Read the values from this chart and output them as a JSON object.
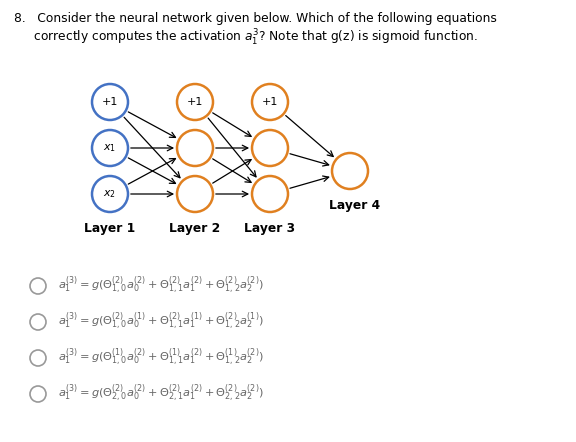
{
  "bg_color": "#ffffff",
  "circle_blue_edge": "#4472c4",
  "circle_orange_edge": "#e08020",
  "circle_lw": 1.8,
  "layer1_label": "Layer 1",
  "layer2_label": "Layer 2",
  "layer3_label": "Layer 3",
  "layer4_label": "Layer 4",
  "options": [
    "$a_1^{(3)} = g(\\Theta_{1,0}^{(2)}a_0^{(2)} + \\Theta_{1,1}^{(2)}a_1^{(2)} + \\Theta_{1,2}^{(2)}a_2^{(2)})$",
    "$a_1^{(3)} = g(\\Theta_{1,0}^{(2)}a_0^{(1)} + \\Theta_{1,1}^{(2)}a_1^{(1)} + \\Theta_{1,2}^{(2)}a_2^{(1)})$",
    "$a_1^{(3)} = g(\\Theta_{1,0}^{(1)}a_0^{(2)} + \\Theta_{1,1}^{(1)}a_1^{(2)} + \\Theta_{1,2}^{(1)}a_2^{(2)})$",
    "$a_1^{(3)} = g(\\Theta_{2,0}^{(2)}a_0^{(2)} + \\Theta_{2,1}^{(2)}a_1^{(2)} + \\Theta_{2,2}^{(2)}a_2^{(2)})$"
  ],
  "option_color": "#666666",
  "title_line1": "8.   Consider the neural network given below. Which of the following equations",
  "title_line2": "     correctly computes the activation $a_1^3$? Note that g(z) is sigmoid function."
}
